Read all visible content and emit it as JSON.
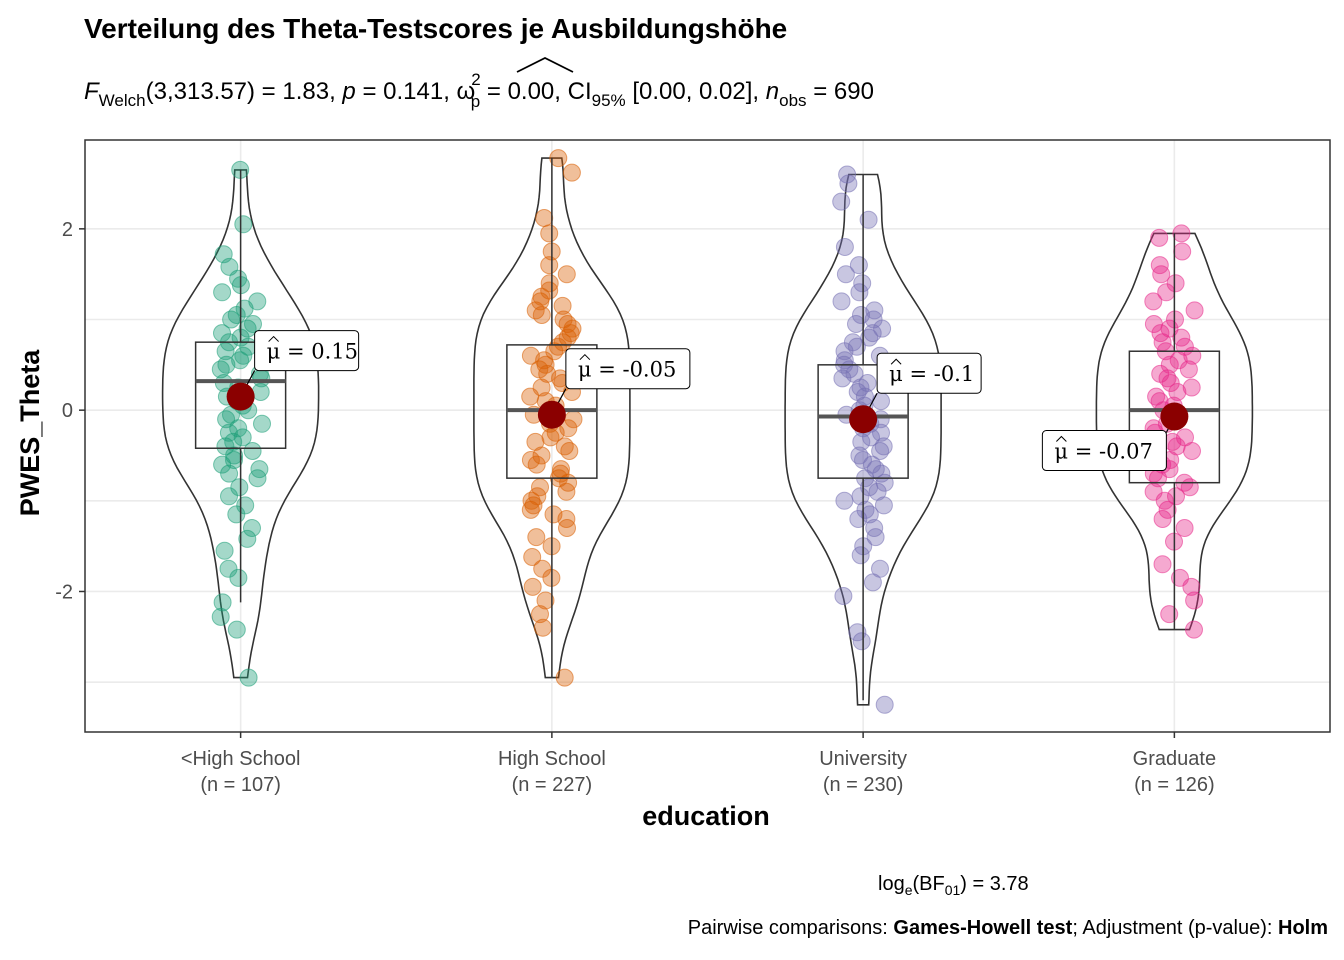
{
  "chart_data": {
    "type": "violin-box-scatter",
    "title": "Verteilung des Theta-Testscores je Ausbildungshöhe",
    "subtitle": {
      "F": "F",
      "F_sub": "Welch",
      "df_stat": "(3,313.57) = 1.83, ",
      "p": "p",
      "p_stat": " = 0.141, ",
      "omega": "ω",
      "omega_sup": "2",
      "omega_sub": "p",
      "omega_stat": " = 0.00, CI",
      "ci_sub": "95%",
      "ci_stat": " [0.00, 0.02], ",
      "n": "n",
      "n_sub": "obs",
      "n_stat": " = 690"
    },
    "xlabel": "education",
    "ylabel": "PWES_Theta",
    "ylim": [
      -3.55,
      2.98
    ],
    "yticks": [
      -2,
      0,
      2
    ],
    "grid": true,
    "groups": [
      {
        "label": "<High School",
        "n_label": "(n = 107)",
        "color": "#1b9e77",
        "q1": -0.42,
        "median": 0.32,
        "q3": 0.75,
        "min": -2.12,
        "max": 2.65,
        "mean": 0.15,
        "mean_label": "0.15",
        "label_side": "right",
        "points": [
          2.65,
          2.05,
          1.72,
          1.58,
          1.45,
          1.38,
          1.3,
          1.2,
          1.12,
          1.05,
          1.0,
          0.95,
          0.9,
          0.85,
          0.8,
          0.75,
          0.7,
          0.65,
          0.6,
          0.55,
          0.5,
          0.45,
          0.4,
          0.35,
          0.3,
          0.25,
          0.2,
          0.15,
          0.1,
          0.05,
          0.0,
          -0.05,
          -0.1,
          -0.15,
          -0.2,
          -0.25,
          -0.3,
          -0.35,
          -0.4,
          -0.45,
          -0.5,
          -0.55,
          -0.6,
          -0.65,
          -0.7,
          -0.75,
          -0.85,
          -0.95,
          -1.05,
          -1.15,
          -1.3,
          -1.42,
          -1.55,
          -1.75,
          -1.85,
          -2.12,
          -2.28,
          -2.42,
          -2.95
        ]
      },
      {
        "label": "High School",
        "n_label": "(n = 227)",
        "color": "#d95f02",
        "q1": -0.75,
        "median": 0.0,
        "q3": 0.72,
        "min": -2.95,
        "max": 2.78,
        "mean": -0.05,
        "mean_label": "-0.05",
        "label_side": "right",
        "points": [
          2.78,
          2.62,
          2.12,
          1.95,
          1.75,
          1.6,
          1.5,
          1.4,
          1.32,
          1.25,
          1.2,
          1.15,
          1.1,
          1.05,
          1.0,
          0.95,
          0.9,
          0.85,
          0.8,
          0.75,
          0.7,
          0.65,
          0.6,
          0.55,
          0.5,
          0.45,
          0.4,
          0.35,
          0.3,
          0.25,
          0.2,
          0.15,
          0.1,
          0.05,
          0.0,
          -0.05,
          -0.1,
          -0.15,
          -0.2,
          -0.25,
          -0.3,
          -0.35,
          -0.4,
          -0.45,
          -0.5,
          -0.55,
          -0.6,
          -0.65,
          -0.7,
          -0.75,
          -0.8,
          -0.85,
          -0.9,
          -0.95,
          -1.0,
          -1.05,
          -1.1,
          -1.15,
          -1.2,
          -1.3,
          -1.4,
          -1.5,
          -1.62,
          -1.75,
          -1.85,
          -1.95,
          -2.1,
          -2.25,
          -2.4,
          -2.95
        ]
      },
      {
        "label": "University",
        "n_label": "(n = 230)",
        "color": "#7570b3",
        "q1": -0.75,
        "median": -0.07,
        "q3": 0.5,
        "min": -3.2,
        "max": 2.6,
        "mean": -0.1,
        "mean_label": "-0.1",
        "label_side": "right",
        "points": [
          2.6,
          2.5,
          2.3,
          2.1,
          1.8,
          1.6,
          1.5,
          1.4,
          1.3,
          1.2,
          1.1,
          1.05,
          1.0,
          0.95,
          0.9,
          0.85,
          0.8,
          0.75,
          0.7,
          0.65,
          0.6,
          0.55,
          0.5,
          0.45,
          0.4,
          0.35,
          0.3,
          0.25,
          0.2,
          0.15,
          0.1,
          0.05,
          0.0,
          -0.05,
          -0.1,
          -0.15,
          -0.2,
          -0.25,
          -0.3,
          -0.35,
          -0.4,
          -0.45,
          -0.5,
          -0.55,
          -0.6,
          -0.65,
          -0.7,
          -0.75,
          -0.8,
          -0.85,
          -0.9,
          -0.95,
          -1.0,
          -1.05,
          -1.1,
          -1.15,
          -1.2,
          -1.3,
          -1.4,
          -1.5,
          -1.6,
          -1.75,
          -1.9,
          -2.05,
          -2.45,
          -2.55,
          -3.25
        ]
      },
      {
        "label": "Graduate",
        "n_label": "(n = 126)",
        "color": "#e7298a",
        "q1": -0.8,
        "median": 0.0,
        "q3": 0.65,
        "min": -2.42,
        "max": 1.95,
        "mean": -0.07,
        "mean_label": "-0.07",
        "label_side": "left",
        "points": [
          1.95,
          1.9,
          1.75,
          1.6,
          1.5,
          1.4,
          1.3,
          1.2,
          1.1,
          1.0,
          0.95,
          0.9,
          0.85,
          0.8,
          0.75,
          0.7,
          0.65,
          0.6,
          0.55,
          0.5,
          0.45,
          0.4,
          0.35,
          0.3,
          0.25,
          0.2,
          0.15,
          0.1,
          0.05,
          0.0,
          -0.05,
          -0.1,
          -0.15,
          -0.2,
          -0.25,
          -0.3,
          -0.35,
          -0.4,
          -0.45,
          -0.5,
          -0.55,
          -0.6,
          -0.65,
          -0.7,
          -0.75,
          -0.8,
          -0.85,
          -0.9,
          -0.95,
          -1.0,
          -1.1,
          -1.2,
          -1.3,
          -1.45,
          -1.7,
          -1.85,
          -1.95,
          -2.1,
          -2.25,
          -2.42
        ]
      }
    ],
    "mean_color": "#8b0000",
    "mean_label_prefix": "μ = ",
    "caption_bf": {
      "pre": "log",
      "sub1": "e",
      "mid": "(BF",
      "sub2": "01",
      "post": ") = 3.78"
    },
    "caption_pairwise": {
      "pre": "Pairwise comparisons: ",
      "test": "Games-Howell test",
      "mid": "; Adjustment (p-value): ",
      "adj": "Holm"
    }
  }
}
